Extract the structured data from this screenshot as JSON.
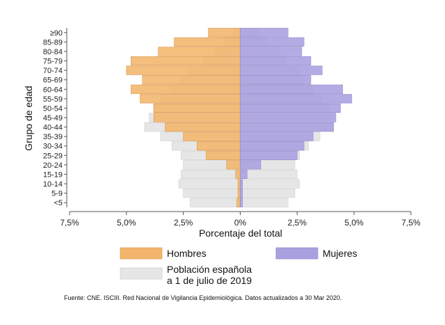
{
  "chart_data": {
    "type": "bar",
    "orientation": "horizontal",
    "subtype": "population-pyramid",
    "xlabel": "Porcentaje del total",
    "ylabel": "Grupo de edad",
    "xlim": [
      -7.5,
      7.5
    ],
    "x_ticks": [
      -7.5,
      -5.0,
      -2.5,
      0,
      2.5,
      5.0,
      7.5
    ],
    "x_tick_labels": [
      "7,5%",
      "5,0%",
      "2,5%",
      "0%",
      "2,5%",
      "5,0%",
      "7,5%"
    ],
    "categories": [
      "<5",
      "5-9",
      "10-14",
      "15-19",
      "20-24",
      "25-29",
      "30-34",
      "35-39",
      "40-44",
      "45-49",
      "50-54",
      "55-59",
      "60-64",
      "65-69",
      "70-74",
      "75-79",
      "80-84",
      "85-89",
      "≥90"
    ],
    "series": [
      {
        "name": "Hombres",
        "side": "left",
        "color": "#F2B56B",
        "values": [
          0.15,
          0.1,
          0.1,
          0.2,
          0.6,
          1.5,
          1.9,
          2.5,
          3.3,
          3.8,
          3.8,
          4.4,
          4.8,
          4.3,
          5.0,
          4.8,
          3.6,
          2.9,
          1.4
        ]
      },
      {
        "name": "Mujeres",
        "side": "right",
        "color": "#A9A0E0",
        "values": [
          0.1,
          0.1,
          0.1,
          0.3,
          0.9,
          2.5,
          2.8,
          3.2,
          4.1,
          4.2,
          4.4,
          4.9,
          4.5,
          3.1,
          3.6,
          3.1,
          2.7,
          2.8,
          2.1
        ]
      },
      {
        "name": "Población española a 1 de julio de 2019",
        "color": "#E6E6E6",
        "stroke": "#CFCFCF",
        "values_left": [
          2.2,
          2.5,
          2.7,
          2.6,
          2.5,
          2.6,
          3.0,
          3.5,
          4.2,
          4.0,
          3.8,
          3.5,
          3.1,
          2.6,
          2.3,
          1.6,
          1.1,
          0.7,
          0.3
        ],
        "values_right": [
          2.1,
          2.4,
          2.6,
          2.5,
          2.4,
          2.6,
          3.0,
          3.5,
          4.1,
          4.0,
          3.9,
          3.6,
          3.2,
          2.8,
          2.6,
          2.0,
          1.7,
          1.2,
          0.8
        ]
      }
    ],
    "legend": {
      "placement": "bottom",
      "items": [
        {
          "label": "Hombres",
          "color": "#F2B56B"
        },
        {
          "label": "Mujeres",
          "color": "#A9A0E0"
        },
        {
          "label_lines": [
            "Población española",
            "a 1 de julio de 2019"
          ],
          "color": "#E6E6E6"
        }
      ]
    },
    "grid": false
  },
  "source": "Fuente: CNE. ISCIII. Red Nacional de Vigilancia Epidemiológica. Datos actualizados a 30 Mar 2020."
}
